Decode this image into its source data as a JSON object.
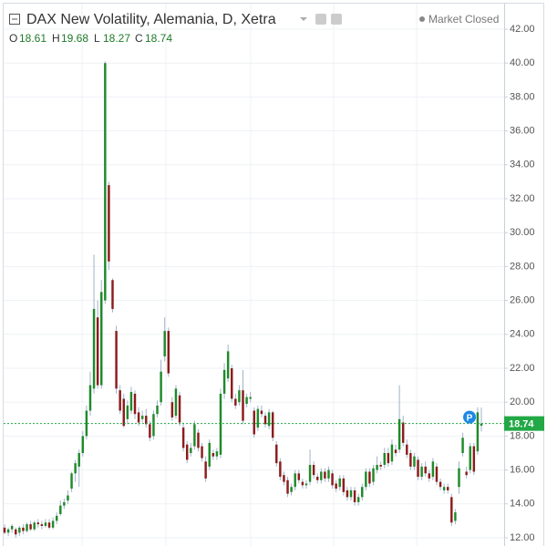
{
  "chart_data": {
    "type": "candlestick",
    "title": "DAX New Volatility, Alemania, D, Xetra",
    "status": "Market Closed",
    "legend_labels": [
      "O",
      "H",
      "L",
      "C"
    ],
    "badge": "P",
    "up_color": "#1f8a2a",
    "down_color": "#8c1c1c",
    "wick_color": "#9fb3c8",
    "price_line_color": "#22a845",
    "grid": true,
    "ylim": [
      12,
      42
    ],
    "yticks": [
      {
        "value": 12,
        "label": "12.00"
      },
      {
        "value": 14,
        "label": "14.00"
      },
      {
        "value": 16,
        "label": "16.00"
      },
      {
        "value": 18,
        "label": "18.00"
      },
      {
        "value": 20,
        "label": "20.00"
      },
      {
        "value": 22,
        "label": "22.00"
      },
      {
        "value": 24,
        "label": "24.00"
      },
      {
        "value": 26,
        "label": "26.00"
      },
      {
        "value": 28,
        "label": "28.00"
      },
      {
        "value": 30,
        "label": "30.00"
      },
      {
        "value": 32,
        "label": "32.00"
      },
      {
        "value": 34,
        "label": "34.00"
      },
      {
        "value": 36,
        "label": "36.00"
      },
      {
        "value": 38,
        "label": "38.00"
      },
      {
        "value": 40,
        "label": "40.00"
      },
      {
        "value": 42,
        "label": "42.00"
      }
    ],
    "ohlc": [
      [
        12.6,
        12.8,
        12.2,
        12.3
      ],
      [
        12.3,
        12.6,
        12.1,
        12.5
      ],
      [
        12.5,
        12.8,
        12.3,
        12.7
      ],
      [
        12.5,
        12.6,
        12.0,
        12.2
      ],
      [
        12.3,
        12.7,
        12.1,
        12.6
      ],
      [
        12.6,
        12.8,
        12.2,
        12.4
      ],
      [
        12.4,
        12.9,
        12.3,
        12.8
      ],
      [
        12.8,
        13.0,
        12.4,
        12.5
      ],
      [
        12.5,
        13.0,
        12.4,
        12.9
      ],
      [
        12.9,
        13.1,
        12.6,
        12.8
      ],
      [
        12.8,
        13.0,
        12.5,
        12.7
      ],
      [
        12.7,
        13.1,
        12.6,
        12.9
      ],
      [
        12.9,
        13.1,
        12.5,
        12.6
      ],
      [
        12.6,
        13.2,
        12.5,
        13.0
      ],
      [
        13.0,
        13.5,
        12.8,
        13.3
      ],
      [
        13.4,
        14.2,
        13.3,
        13.9
      ],
      [
        13.9,
        14.3,
        13.7,
        14.1
      ],
      [
        14.2,
        14.8,
        14.0,
        14.5
      ],
      [
        14.9,
        15.9,
        14.7,
        15.8
      ],
      [
        15.8,
        16.6,
        15.3,
        16.4
      ],
      [
        16.2,
        17.2,
        15.0,
        17.0
      ],
      [
        17.0,
        18.3,
        16.8,
        18.0
      ],
      [
        18.0,
        19.8,
        17.8,
        19.5
      ],
      [
        19.5,
        21.8,
        19.2,
        21.0
      ],
      [
        20.8,
        28.7,
        20.5,
        25.5
      ],
      [
        25.0,
        26.0,
        20.8,
        21.0
      ],
      [
        21.0,
        27.2,
        20.8,
        26.5
      ],
      [
        26.0,
        40.1,
        25.8,
        40.0
      ],
      [
        32.8,
        33.0,
        27.8,
        28.3
      ],
      [
        27.2,
        27.3,
        25.3,
        25.5
      ],
      [
        24.2,
        24.5,
        20.5,
        20.8
      ],
      [
        20.7,
        21.0,
        19.3,
        19.5
      ],
      [
        20.2,
        20.5,
        18.5,
        18.6
      ],
      [
        19.0,
        20.1,
        18.7,
        19.8
      ],
      [
        19.5,
        20.9,
        19.3,
        20.6
      ],
      [
        20.5,
        20.7,
        19.0,
        19.3
      ],
      [
        19.4,
        19.7,
        18.6,
        18.8
      ],
      [
        19.0,
        19.5,
        18.8,
        19.2
      ],
      [
        19.2,
        19.6,
        18.5,
        18.7
      ],
      [
        18.7,
        18.9,
        17.7,
        17.9
      ],
      [
        18.0,
        19.5,
        17.8,
        19.3
      ],
      [
        19.3,
        20.1,
        19.1,
        19.8
      ],
      [
        20.0,
        22.5,
        19.8,
        21.8
      ],
      [
        22.7,
        25.0,
        22.4,
        24.2
      ],
      [
        24.2,
        24.4,
        21.5,
        21.7
      ],
      [
        20.0,
        20.3,
        18.9,
        19.1
      ],
      [
        19.2,
        21.0,
        19.0,
        20.8
      ],
      [
        20.4,
        20.6,
        18.6,
        18.8
      ],
      [
        18.5,
        18.8,
        17.1,
        17.3
      ],
      [
        17.5,
        17.7,
        16.4,
        16.6
      ],
      [
        17.0,
        17.6,
        16.8,
        17.3
      ],
      [
        17.4,
        18.9,
        17.2,
        18.7
      ],
      [
        18.2,
        18.4,
        17.1,
        17.3
      ],
      [
        17.4,
        17.6,
        16.5,
        16.7
      ],
      [
        16.5,
        16.8,
        15.3,
        15.5
      ],
      [
        16.2,
        17.8,
        16.0,
        17.6
      ],
      [
        17.0,
        17.2,
        16.6,
        16.8
      ],
      [
        16.8,
        17.3,
        16.6,
        17.1
      ],
      [
        16.9,
        20.8,
        16.7,
        20.5
      ],
      [
        20.5,
        22.3,
        20.2,
        21.9
      ],
      [
        21.4,
        23.4,
        21.2,
        23.0
      ],
      [
        22.0,
        22.2,
        20.0,
        20.2
      ],
      [
        20.2,
        20.5,
        19.6,
        19.8
      ],
      [
        20.0,
        21.0,
        19.8,
        20.7
      ],
      [
        20.7,
        21.9,
        18.7,
        18.9
      ],
      [
        19.9,
        20.5,
        19.7,
        20.3
      ],
      [
        20.2,
        20.6,
        20.0,
        20.3
      ],
      [
        19.5,
        19.7,
        17.9,
        18.1
      ],
      [
        18.5,
        19.8,
        18.3,
        19.6
      ],
      [
        19.5,
        19.8,
        19.1,
        19.3
      ],
      [
        19.2,
        19.4,
        18.5,
        18.7
      ],
      [
        18.6,
        19.6,
        18.4,
        19.4
      ],
      [
        19.4,
        19.5,
        17.7,
        17.9
      ],
      [
        17.5,
        17.7,
        16.2,
        16.4
      ],
      [
        16.5,
        16.7,
        15.4,
        15.6
      ],
      [
        15.7,
        15.9,
        15.1,
        15.3
      ],
      [
        15.4,
        15.6,
        14.4,
        14.6
      ],
      [
        14.7,
        15.2,
        14.5,
        15.0
      ],
      [
        15.0,
        16.0,
        14.8,
        15.8
      ],
      [
        15.8,
        16.0,
        15.2,
        15.4
      ],
      [
        15.3,
        15.5,
        14.9,
        15.1
      ],
      [
        15.1,
        15.4,
        14.9,
        15.2
      ],
      [
        15.3,
        17.2,
        15.1,
        16.3
      ],
      [
        16.3,
        16.5,
        15.5,
        15.7
      ],
      [
        15.6,
        15.8,
        15.2,
        15.4
      ],
      [
        15.4,
        16.1,
        15.2,
        15.9
      ],
      [
        15.9,
        16.1,
        15.3,
        15.5
      ],
      [
        15.5,
        16.2,
        15.3,
        16.0
      ],
      [
        15.8,
        16.0,
        14.9,
        15.1
      ],
      [
        15.2,
        15.4,
        14.7,
        14.9
      ],
      [
        15.0,
        15.7,
        14.8,
        15.5
      ],
      [
        15.5,
        15.7,
        14.5,
        14.7
      ],
      [
        14.8,
        15.0,
        14.2,
        14.4
      ],
      [
        14.4,
        15.0,
        14.2,
        14.8
      ],
      [
        14.8,
        15.0,
        13.9,
        14.1
      ],
      [
        14.1,
        14.6,
        13.9,
        14.4
      ],
      [
        14.4,
        15.2,
        14.2,
        15.0
      ],
      [
        15.0,
        16.1,
        14.8,
        15.9
      ],
      [
        15.9,
        16.1,
        15.0,
        15.2
      ],
      [
        15.3,
        16.3,
        15.1,
        16.1
      ],
      [
        16.0,
        16.8,
        15.8,
        16.3
      ],
      [
        16.3,
        16.5,
        16.0,
        16.2
      ],
      [
        16.3,
        17.3,
        16.1,
        17.0
      ],
      [
        17.0,
        17.3,
        16.2,
        16.4
      ],
      [
        16.5,
        17.8,
        16.3,
        17.5
      ],
      [
        17.2,
        17.5,
        16.8,
        17.0
      ],
      [
        17.2,
        21.0,
        17.0,
        19.0
      ],
      [
        18.8,
        19.2,
        17.4,
        17.6
      ],
      [
        17.5,
        17.8,
        16.7,
        16.9
      ],
      [
        17.0,
        17.2,
        16.0,
        16.2
      ],
      [
        16.2,
        17.0,
        16.0,
        16.8
      ],
      [
        16.6,
        16.8,
        15.4,
        15.6
      ],
      [
        15.6,
        16.4,
        15.4,
        16.2
      ],
      [
        16.2,
        16.5,
        15.6,
        15.8
      ],
      [
        15.8,
        16.0,
        15.3,
        15.5
      ],
      [
        15.6,
        16.7,
        15.4,
        16.5
      ],
      [
        16.2,
        16.4,
        15.1,
        15.3
      ],
      [
        15.3,
        15.5,
        14.8,
        15.0
      ],
      [
        14.8,
        15.2,
        14.6,
        15.0
      ],
      [
        15.0,
        15.2,
        14.6,
        14.8
      ],
      [
        14.4,
        14.6,
        12.7,
        12.9
      ],
      [
        13.0,
        13.7,
        12.8,
        13.5
      ],
      [
        15.0,
        16.5,
        14.6,
        16.1
      ],
      [
        17.0,
        18.2,
        16.8,
        17.9
      ],
      [
        15.9,
        16.2,
        15.5,
        15.7
      ],
      [
        16.0,
        17.6,
        15.8,
        17.4
      ],
      [
        17.4,
        17.6,
        15.7,
        15.9
      ],
      [
        17.1,
        19.7,
        16.9,
        19.4
      ],
      [
        18.61,
        19.68,
        18.27,
        18.74
      ]
    ]
  }
}
